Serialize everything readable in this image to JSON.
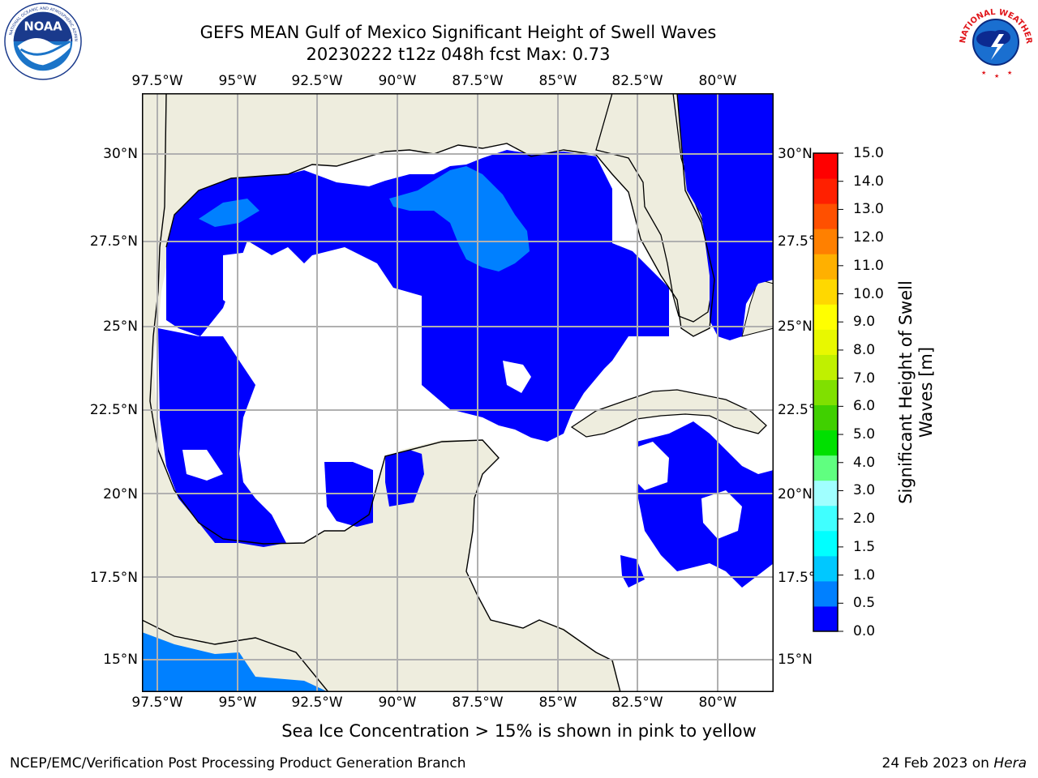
{
  "title": {
    "line1": "GEFS MEAN Gulf of Mexico Significant Height of Swell Waves",
    "line2": "20230222 t12z 048h fcst   Max: 0.73"
  },
  "logos": {
    "left": "noaa-logo",
    "right": "national-weather-service-logo",
    "left_text": "NOAA",
    "right_text": "NATIONAL WEATHER SERVICE"
  },
  "map": {
    "projection": "lat-lon",
    "lon_range": [
      -98.5,
      -78.75
    ],
    "lat_range": [
      14.0,
      31.75
    ],
    "lon_ticks": [
      "97.5°W",
      "95°W",
      "92.5°W",
      "90°W",
      "87.5°W",
      "85°W",
      "82.5°W",
      "80°W"
    ],
    "lat_ticks_left": [
      "30°N",
      "27.5°N",
      "25°N",
      "22.5°N",
      "20°N",
      "17.5°N",
      "15°N"
    ],
    "lat_ticks_right": [
      "30°N",
      "27.5°N",
      "25°N",
      "22.5°N",
      "20°N",
      "17.5°N",
      "15°N"
    ],
    "colors": {
      "land": "#eeedde",
      "no_data_water": "#ffffff",
      "gridline": "#b0b0b0",
      "coastline": "#000000"
    }
  },
  "colorbar": {
    "label": "Significant Height of Swell Waves [m]",
    "ticks": [
      "0.0",
      "0.5",
      "1.0",
      "1.5",
      "2.0",
      "3.0",
      "4.0",
      "5.0",
      "6.0",
      "7.0",
      "8.0",
      "9.0",
      "10.0",
      "11.0",
      "12.0",
      "13.0",
      "14.0",
      "15.0"
    ],
    "colors": [
      "#0000ff",
      "#0080ff",
      "#00c8ff",
      "#00ffff",
      "#40ffff",
      "#a0ffff",
      "#60ff80",
      "#00e000",
      "#40d000",
      "#80e000",
      "#c0f000",
      "#e8f800",
      "#ffff00",
      "#ffd800",
      "#ffb000",
      "#ff8000",
      "#ff5000",
      "#ff2000",
      "#ff0000"
    ]
  },
  "caption": "Sea Ice Concentration > 15% is shown in pink to yellow",
  "footer": {
    "left": "NCEP/EMC/Verification Post Processing Product Generation Branch",
    "right_prefix": "24 Feb 2023 on ",
    "right_machine": "Hera"
  }
}
